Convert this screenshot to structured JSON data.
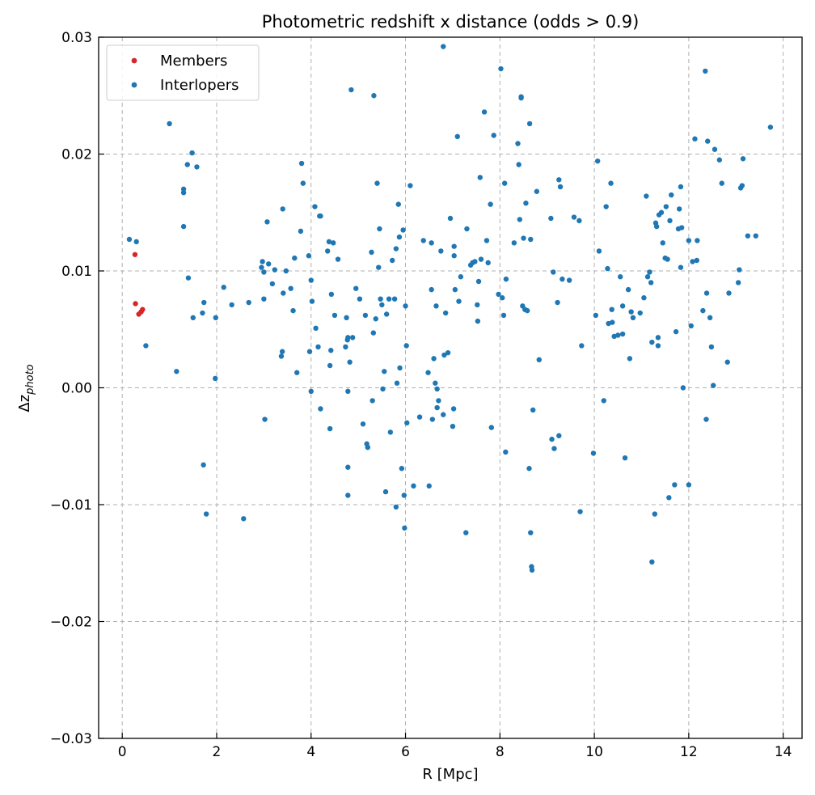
{
  "chart_data": {
    "type": "scatter",
    "title": "Photometric redshift x distance (odds > 0.9)",
    "xlabel": "R [Mpc]",
    "ylabel_base": "Δz",
    "ylabel_sub": "photo",
    "xlim": [
      -0.5,
      14.4
    ],
    "ylim": [
      -0.03,
      0.03
    ],
    "xticks": [
      0,
      2,
      4,
      6,
      8,
      10,
      12,
      14
    ],
    "yticks": [
      -0.03,
      -0.02,
      -0.01,
      0.0,
      0.01,
      0.02,
      0.03
    ],
    "xtick_labels": [
      "0",
      "2",
      "4",
      "6",
      "8",
      "10",
      "12",
      "14"
    ],
    "ytick_labels": [
      "−0.03",
      "−0.02",
      "−0.01",
      "0.00",
      "0.01",
      "0.02",
      "0.03"
    ],
    "grid": true,
    "legend_position": "top-left",
    "series": [
      {
        "name": "Members",
        "color": "#d62728",
        "points": [
          [
            0.27,
            0.0114
          ],
          [
            0.28,
            0.0072
          ],
          [
            0.35,
            0.0063
          ],
          [
            0.4,
            0.0065
          ],
          [
            0.43,
            0.0067
          ]
        ]
      },
      {
        "name": "Interlopers",
        "color": "#1f77b4",
        "points": [
          [
            0.15,
            0.0127
          ],
          [
            0.3,
            0.0125
          ],
          [
            0.5,
            0.0036
          ],
          [
            1.0,
            0.0226
          ],
          [
            1.15,
            0.0014
          ],
          [
            1.3,
            0.0138
          ],
          [
            1.3,
            0.017
          ],
          [
            1.3,
            0.0167
          ],
          [
            1.38,
            0.0191
          ],
          [
            1.4,
            0.0094
          ],
          [
            1.48,
            0.0201
          ],
          [
            1.5,
            0.006
          ],
          [
            1.58,
            0.0189
          ],
          [
            1.7,
            0.0064
          ],
          [
            1.73,
            0.0073
          ],
          [
            1.72,
            -0.0066
          ],
          [
            1.78,
            -0.0108
          ],
          [
            1.97,
            0.0008
          ],
          [
            1.98,
            0.006
          ],
          [
            2.15,
            0.0086
          ],
          [
            2.32,
            0.0071
          ],
          [
            2.57,
            -0.0112
          ],
          [
            2.68,
            0.0073
          ],
          [
            2.95,
            0.0103
          ],
          [
            2.97,
            0.0108
          ],
          [
            3.0,
            0.0076
          ],
          [
            3.0,
            0.0099
          ],
          [
            3.02,
            -0.0027
          ],
          [
            3.07,
            0.0142
          ],
          [
            3.1,
            0.0106
          ],
          [
            3.18,
            0.0089
          ],
          [
            3.23,
            0.0101
          ],
          [
            3.37,
            0.0027
          ],
          [
            3.39,
            0.0031
          ],
          [
            3.4,
            0.0153
          ],
          [
            3.41,
            0.0081
          ],
          [
            3.47,
            0.01
          ],
          [
            3.57,
            0.0085
          ],
          [
            3.62,
            0.0066
          ],
          [
            3.65,
            0.0111
          ],
          [
            3.7,
            0.0013
          ],
          [
            3.78,
            0.0134
          ],
          [
            3.8,
            0.0192
          ],
          [
            3.83,
            0.0175
          ],
          [
            3.95,
            0.0113
          ],
          [
            3.97,
            0.0031
          ],
          [
            4.0,
            0.0092
          ],
          [
            4.0,
            -0.0003
          ],
          [
            4.02,
            0.0074
          ],
          [
            4.08,
            0.0155
          ],
          [
            4.1,
            0.0051
          ],
          [
            4.15,
            0.0035
          ],
          [
            4.18,
            0.0147
          ],
          [
            4.2,
            0.0147
          ],
          [
            4.2,
            -0.0018
          ],
          [
            4.35,
            0.0117
          ],
          [
            4.38,
            0.0125
          ],
          [
            4.4,
            -0.0035
          ],
          [
            4.4,
            0.0019
          ],
          [
            4.42,
            0.0032
          ],
          [
            4.43,
            0.008
          ],
          [
            4.47,
            0.0124
          ],
          [
            4.5,
            0.0062
          ],
          [
            4.57,
            0.011
          ],
          [
            4.73,
            0.0035
          ],
          [
            4.75,
            0.006
          ],
          [
            4.77,
            0.0041
          ],
          [
            4.78,
            0.0043
          ],
          [
            4.78,
            -0.0003
          ],
          [
            4.78,
            -0.0068
          ],
          [
            4.78,
            -0.0092
          ],
          [
            4.82,
            0.0022
          ],
          [
            4.85,
            0.0255
          ],
          [
            4.88,
            0.0043
          ],
          [
            4.95,
            0.0085
          ],
          [
            5.03,
            0.0076
          ],
          [
            5.1,
            -0.0031
          ],
          [
            5.15,
            0.0062
          ],
          [
            5.18,
            -0.0048
          ],
          [
            5.2,
            -0.0051
          ],
          [
            5.28,
            0.0116
          ],
          [
            5.3,
            -0.0011
          ],
          [
            5.32,
            0.0047
          ],
          [
            5.33,
            0.025
          ],
          [
            5.37,
            0.0059
          ],
          [
            5.4,
            0.0175
          ],
          [
            5.43,
            0.0103
          ],
          [
            5.45,
            0.0136
          ],
          [
            5.47,
            0.0076
          ],
          [
            5.5,
            0.0071
          ],
          [
            5.52,
            -0.0001
          ],
          [
            5.55,
            0.0014
          ],
          [
            5.58,
            -0.0089
          ],
          [
            5.6,
            0.0063
          ],
          [
            5.65,
            0.0076
          ],
          [
            5.68,
            -0.0038
          ],
          [
            5.72,
            0.0109
          ],
          [
            5.77,
            0.0076
          ],
          [
            5.8,
            0.0119
          ],
          [
            5.8,
            -0.0102
          ],
          [
            5.82,
            0.0004
          ],
          [
            5.85,
            0.0157
          ],
          [
            5.87,
            0.0129
          ],
          [
            5.88,
            0.0017
          ],
          [
            5.92,
            -0.0069
          ],
          [
            5.95,
            0.0135
          ],
          [
            5.97,
            -0.0092
          ],
          [
            5.98,
            -0.012
          ],
          [
            6.0,
            0.007
          ],
          [
            6.02,
            0.0036
          ],
          [
            6.03,
            -0.003
          ],
          [
            6.1,
            0.0173
          ],
          [
            6.17,
            -0.0084
          ],
          [
            6.3,
            -0.0025
          ],
          [
            6.38,
            0.0126
          ],
          [
            6.48,
            0.0013
          ],
          [
            6.5,
            -0.0084
          ],
          [
            6.55,
            0.0084
          ],
          [
            6.55,
            0.0124
          ],
          [
            6.57,
            -0.0027
          ],
          [
            6.6,
            0.0025
          ],
          [
            6.63,
            0.0004
          ],
          [
            6.65,
            0.007
          ],
          [
            6.67,
            -0.0001
          ],
          [
            6.67,
            -0.0017
          ],
          [
            6.7,
            -0.0011
          ],
          [
            6.75,
            0.0117
          ],
          [
            6.8,
            0.0292
          ],
          [
            6.8,
            -0.0023
          ],
          [
            6.82,
            0.0028
          ],
          [
            6.85,
            0.0064
          ],
          [
            6.9,
            0.003
          ],
          [
            6.95,
            0.0145
          ],
          [
            7.0,
            -0.0033
          ],
          [
            7.02,
            -0.0018
          ],
          [
            7.03,
            0.0121
          ],
          [
            7.03,
            0.0113
          ],
          [
            7.05,
            0.0084
          ],
          [
            7.1,
            0.0215
          ],
          [
            7.13,
            0.0074
          ],
          [
            7.17,
            0.0095
          ],
          [
            7.28,
            -0.0124
          ],
          [
            7.3,
            0.0136
          ],
          [
            7.38,
            0.0105
          ],
          [
            7.42,
            0.0107
          ],
          [
            7.47,
            0.0108
          ],
          [
            7.52,
            0.0071
          ],
          [
            7.53,
            0.0057
          ],
          [
            7.55,
            0.0091
          ],
          [
            7.58,
            0.018
          ],
          [
            7.6,
            0.011
          ],
          [
            7.67,
            0.0236
          ],
          [
            7.72,
            0.0126
          ],
          [
            7.75,
            0.0107
          ],
          [
            7.8,
            0.0157
          ],
          [
            7.82,
            -0.0034
          ],
          [
            7.87,
            0.0216
          ],
          [
            7.97,
            0.008
          ],
          [
            8.02,
            0.0273
          ],
          [
            8.05,
            0.0077
          ],
          [
            8.08,
            0.0062
          ],
          [
            8.1,
            0.0175
          ],
          [
            8.12,
            -0.0055
          ],
          [
            8.13,
            0.0093
          ],
          [
            8.3,
            0.0124
          ],
          [
            8.38,
            0.0209
          ],
          [
            8.4,
            0.0191
          ],
          [
            8.42,
            0.0144
          ],
          [
            8.45,
            0.0248
          ],
          [
            8.45,
            0.0249
          ],
          [
            8.48,
            0.007
          ],
          [
            8.5,
            0.0128
          ],
          [
            8.53,
            0.0067
          ],
          [
            8.55,
            0.0158
          ],
          [
            8.58,
            0.0066
          ],
          [
            8.62,
            -0.0069
          ],
          [
            8.63,
            0.0226
          ],
          [
            8.65,
            0.0127
          ],
          [
            8.65,
            -0.0124
          ],
          [
            8.67,
            -0.0153
          ],
          [
            8.68,
            -0.0156
          ],
          [
            8.7,
            -0.0019
          ],
          [
            8.78,
            0.0168
          ],
          [
            8.83,
            0.0024
          ],
          [
            9.08,
            0.0145
          ],
          [
            9.1,
            -0.0044
          ],
          [
            9.13,
            0.0099
          ],
          [
            9.15,
            -0.0052
          ],
          [
            9.22,
            0.0073
          ],
          [
            9.25,
            -0.0041
          ],
          [
            9.25,
            0.0178
          ],
          [
            9.28,
            0.0172
          ],
          [
            9.32,
            0.0093
          ],
          [
            9.47,
            0.0092
          ],
          [
            9.57,
            0.0146
          ],
          [
            9.68,
            0.0143
          ],
          [
            9.7,
            -0.0106
          ],
          [
            9.73,
            0.0036
          ],
          [
            9.98,
            -0.0056
          ],
          [
            10.03,
            0.0062
          ],
          [
            10.07,
            0.0194
          ],
          [
            10.1,
            0.0117
          ],
          [
            10.2,
            -0.0011
          ],
          [
            10.25,
            0.0155
          ],
          [
            10.28,
            0.0102
          ],
          [
            10.3,
            0.0055
          ],
          [
            10.35,
            0.0175
          ],
          [
            10.37,
            0.0067
          ],
          [
            10.38,
            0.0056
          ],
          [
            10.42,
            0.0044
          ],
          [
            10.5,
            0.0045
          ],
          [
            10.55,
            0.0095
          ],
          [
            10.6,
            0.0046
          ],
          [
            10.6,
            0.007
          ],
          [
            10.65,
            -0.006
          ],
          [
            10.72,
            0.0084
          ],
          [
            10.75,
            0.0025
          ],
          [
            10.78,
            0.0065
          ],
          [
            10.82,
            0.006
          ],
          [
            10.97,
            0.0064
          ],
          [
            11.05,
            0.0077
          ],
          [
            11.1,
            0.0164
          ],
          [
            11.13,
            0.0095
          ],
          [
            11.17,
            0.0099
          ],
          [
            11.2,
            0.009
          ],
          [
            11.22,
            0.0039
          ],
          [
            11.22,
            -0.0149
          ],
          [
            11.28,
            -0.0108
          ],
          [
            11.3,
            0.0141
          ],
          [
            11.32,
            0.0138
          ],
          [
            11.35,
            0.0036
          ],
          [
            11.35,
            0.0043
          ],
          [
            11.37,
            0.0148
          ],
          [
            11.42,
            0.015
          ],
          [
            11.45,
            0.0124
          ],
          [
            11.5,
            0.0111
          ],
          [
            11.52,
            0.0155
          ],
          [
            11.55,
            0.011
          ],
          [
            11.58,
            -0.0094
          ],
          [
            11.6,
            0.0143
          ],
          [
            11.63,
            0.0165
          ],
          [
            11.7,
            -0.0083
          ],
          [
            11.73,
            0.0048
          ],
          [
            11.78,
            0.0136
          ],
          [
            11.8,
            0.0153
          ],
          [
            11.83,
            0.0172
          ],
          [
            11.83,
            0.0103
          ],
          [
            11.85,
            0.0137
          ],
          [
            11.88,
            0.0
          ],
          [
            12.0,
            -0.0083
          ],
          [
            12.0,
            0.0126
          ],
          [
            12.05,
            0.0053
          ],
          [
            12.08,
            0.0108
          ],
          [
            12.13,
            0.0213
          ],
          [
            12.17,
            0.0109
          ],
          [
            12.18,
            0.0126
          ],
          [
            12.3,
            0.0066
          ],
          [
            12.35,
            0.0271
          ],
          [
            12.37,
            -0.0027
          ],
          [
            12.38,
            0.0081
          ],
          [
            12.4,
            0.0211
          ],
          [
            12.45,
            0.006
          ],
          [
            12.48,
            0.0035
          ],
          [
            12.52,
            0.0002
          ],
          [
            12.55,
            0.0204
          ],
          [
            12.65,
            0.0195
          ],
          [
            12.7,
            0.0175
          ],
          [
            12.82,
            0.0022
          ],
          [
            12.85,
            0.0081
          ],
          [
            13.05,
            0.009
          ],
          [
            13.07,
            0.0101
          ],
          [
            13.1,
            0.0171
          ],
          [
            13.13,
            0.0173
          ],
          [
            13.15,
            0.0196
          ],
          [
            13.25,
            0.013
          ],
          [
            13.42,
            0.013
          ],
          [
            13.73,
            0.0223
          ]
        ]
      }
    ]
  }
}
